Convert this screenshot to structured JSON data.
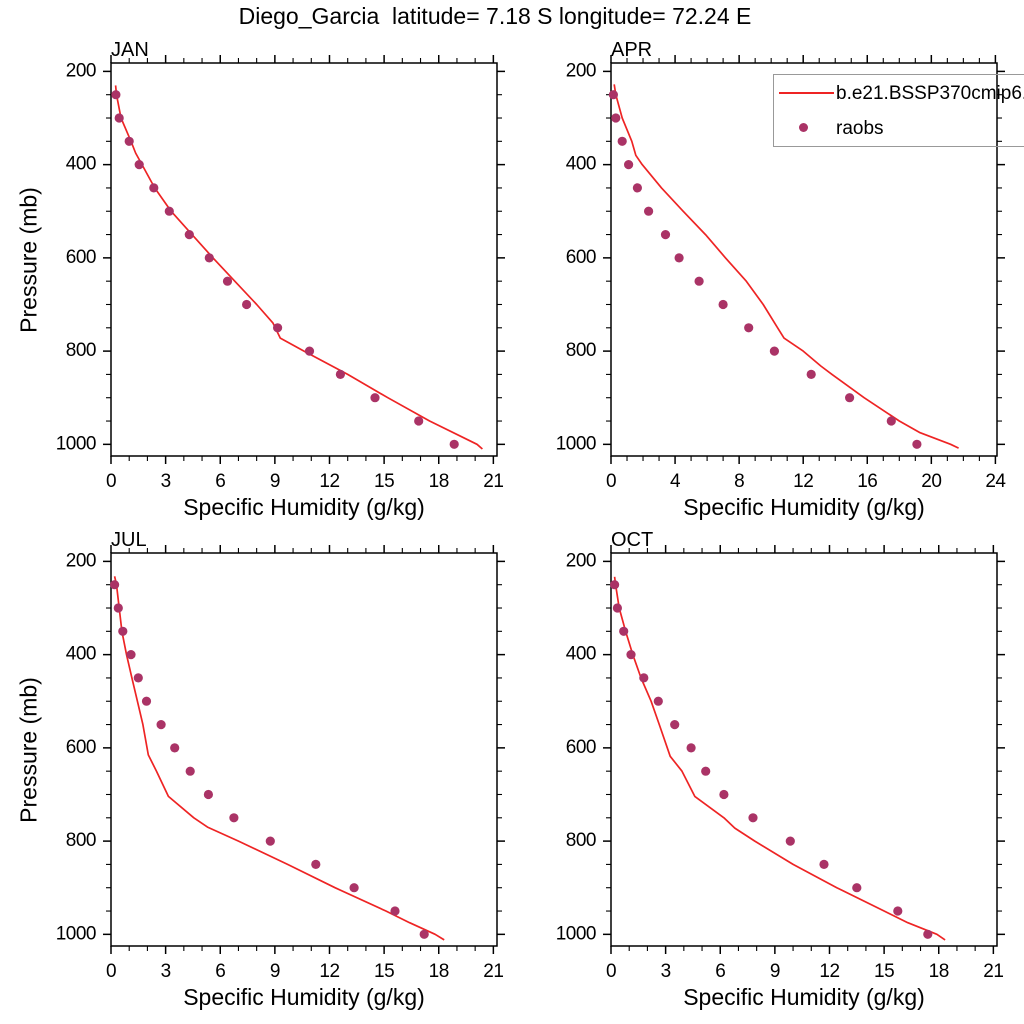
{
  "figure": {
    "title": "Diego_Garcia  latitude= 7.18 S longitude= 72.24 E"
  },
  "legend": {
    "items": [
      {
        "label": "b.e21.BSSP370cmip6.",
        "type": "line",
        "color": "#ee2424"
      },
      {
        "label": "raobs",
        "type": "marker",
        "color": "#aa3366"
      }
    ]
  },
  "chart_data": [
    {
      "type": "line",
      "title": "JAN",
      "xlabel": "Specific Humidity (g/kg)",
      "ylabel": "Pressure (mb)",
      "xlim": [
        0,
        21.2
      ],
      "xticks": [
        0,
        3,
        6,
        9,
        12,
        15,
        18,
        21
      ],
      "x_minor_step": 1,
      "ylim": [
        182,
        1025
      ],
      "yticks": [
        200,
        400,
        600,
        800,
        1000
      ],
      "y_minor_step": 50,
      "y_axis_inverted": true,
      "grid": false,
      "series": [
        {
          "name": "b.e21.BSSP370cmip6.",
          "kind": "line",
          "color": "#ee2424",
          "points": [
            [
              0.25,
              230
            ],
            [
              0.3,
              250
            ],
            [
              0.55,
              300
            ],
            [
              1.1,
              350
            ],
            [
              1.35,
              375
            ],
            [
              1.7,
              400
            ],
            [
              2.4,
              450
            ],
            [
              3.3,
              500
            ],
            [
              4.45,
              550
            ],
            [
              5.6,
              600
            ],
            [
              6.8,
              650
            ],
            [
              8.0,
              700
            ],
            [
              8.9,
              740
            ],
            [
              9.3,
              772
            ],
            [
              10.6,
              800
            ],
            [
              13.0,
              850
            ],
            [
              15.2,
              900
            ],
            [
              17.5,
              950
            ],
            [
              20.1,
              1000
            ],
            [
              20.4,
              1010
            ]
          ]
        },
        {
          "name": "raobs",
          "kind": "scatter",
          "color": "#aa3366",
          "points": [
            [
              0.27,
              250
            ],
            [
              0.45,
              300
            ],
            [
              1.0,
              350
            ],
            [
              1.55,
              400
            ],
            [
              2.35,
              450
            ],
            [
              3.2,
              500
            ],
            [
              4.3,
              550
            ],
            [
              5.4,
              600
            ],
            [
              6.4,
              650
            ],
            [
              7.45,
              700
            ],
            [
              9.15,
              750
            ],
            [
              10.9,
              800
            ],
            [
              12.6,
              850
            ],
            [
              14.5,
              900
            ],
            [
              16.9,
              950
            ],
            [
              18.85,
              1000
            ]
          ]
        }
      ]
    },
    {
      "type": "line",
      "title": "APR",
      "xlabel": "Specific Humidity (g/kg)",
      "ylabel": "Pressure (mb)",
      "xlim": [
        0,
        24.1
      ],
      "xticks": [
        0,
        4,
        8,
        12,
        16,
        20,
        24
      ],
      "x_minor_step": 1,
      "ylim": [
        182,
        1025
      ],
      "yticks": [
        200,
        400,
        600,
        800,
        1000
      ],
      "y_minor_step": 50,
      "y_axis_inverted": true,
      "grid": false,
      "series": [
        {
          "name": "b.e21.BSSP370cmip6.",
          "kind": "line",
          "color": "#ee2424",
          "points": [
            [
              0.2,
              228
            ],
            [
              0.3,
              250
            ],
            [
              0.7,
              300
            ],
            [
              1.3,
              350
            ],
            [
              1.55,
              380
            ],
            [
              1.95,
              400
            ],
            [
              3.15,
              450
            ],
            [
              4.5,
              500
            ],
            [
              5.9,
              550
            ],
            [
              7.15,
              600
            ],
            [
              8.45,
              650
            ],
            [
              9.5,
              700
            ],
            [
              10.4,
              750
            ],
            [
              10.8,
              772
            ],
            [
              12.0,
              800
            ],
            [
              13.1,
              832
            ],
            [
              13.8,
              850
            ],
            [
              15.8,
              900
            ],
            [
              18.0,
              950
            ],
            [
              19.3,
              975
            ],
            [
              21.2,
              1000
            ],
            [
              21.7,
              1008
            ]
          ]
        },
        {
          "name": "raobs",
          "kind": "scatter",
          "color": "#aa3366",
          "points": [
            [
              0.15,
              250
            ],
            [
              0.3,
              300
            ],
            [
              0.7,
              350
            ],
            [
              1.1,
              400
            ],
            [
              1.65,
              450
            ],
            [
              2.35,
              500
            ],
            [
              3.4,
              550
            ],
            [
              4.25,
              600
            ],
            [
              5.5,
              650
            ],
            [
              7.0,
              700
            ],
            [
              8.6,
              750
            ],
            [
              10.2,
              800
            ],
            [
              12.5,
              850
            ],
            [
              14.9,
              900
            ],
            [
              17.5,
              950
            ],
            [
              19.1,
              1000
            ]
          ]
        }
      ]
    },
    {
      "type": "line",
      "title": "JUL",
      "xlabel": "Specific Humidity (g/kg)",
      "ylabel": "Pressure (mb)",
      "xlim": [
        0,
        21.2
      ],
      "xticks": [
        0,
        3,
        6,
        9,
        12,
        15,
        18,
        21
      ],
      "x_minor_step": 1,
      "ylim": [
        182,
        1025
      ],
      "yticks": [
        200,
        400,
        600,
        800,
        1000
      ],
      "y_minor_step": 50,
      "y_axis_inverted": true,
      "grid": false,
      "series": [
        {
          "name": "b.e21.BSSP370cmip6.",
          "kind": "line",
          "color": "#ee2424",
          "points": [
            [
              0.2,
              232
            ],
            [
              0.3,
              250
            ],
            [
              0.45,
              300
            ],
            [
              0.6,
              350
            ],
            [
              0.85,
              400
            ],
            [
              1.15,
              450
            ],
            [
              1.45,
              500
            ],
            [
              1.75,
              550
            ],
            [
              2.05,
              615
            ],
            [
              2.5,
              650
            ],
            [
              3.15,
              704
            ],
            [
              4.55,
              750
            ],
            [
              5.3,
              770
            ],
            [
              7.0,
              800
            ],
            [
              9.7,
              850
            ],
            [
              12.3,
              900
            ],
            [
              15.1,
              950
            ],
            [
              16.4,
              975
            ],
            [
              17.8,
              1000
            ],
            [
              18.3,
              1012
            ]
          ]
        },
        {
          "name": "raobs",
          "kind": "scatter",
          "color": "#aa3366",
          "points": [
            [
              0.2,
              250
            ],
            [
              0.4,
              300
            ],
            [
              0.65,
              350
            ],
            [
              1.1,
              400
            ],
            [
              1.5,
              450
            ],
            [
              1.95,
              500
            ],
            [
              2.75,
              550
            ],
            [
              3.5,
              600
            ],
            [
              4.35,
              650
            ],
            [
              5.35,
              700
            ],
            [
              6.75,
              750
            ],
            [
              8.75,
              800
            ],
            [
              11.25,
              850
            ],
            [
              13.35,
              900
            ],
            [
              15.6,
              950
            ],
            [
              17.2,
              1000
            ]
          ]
        }
      ]
    },
    {
      "type": "line",
      "title": "OCT",
      "xlabel": "Specific Humidity (g/kg)",
      "ylabel": "Pressure (mb)",
      "xlim": [
        0,
        21.2
      ],
      "xticks": [
        0,
        3,
        6,
        9,
        12,
        15,
        18,
        21
      ],
      "x_minor_step": 1,
      "ylim": [
        182,
        1025
      ],
      "yticks": [
        200,
        400,
        600,
        800,
        1000
      ],
      "y_minor_step": 50,
      "y_axis_inverted": true,
      "grid": false,
      "series": [
        {
          "name": "b.e21.BSSP370cmip6.",
          "kind": "line",
          "color": "#ee2424",
          "points": [
            [
              0.2,
              233
            ],
            [
              0.25,
              250
            ],
            [
              0.45,
              300
            ],
            [
              0.8,
              350
            ],
            [
              1.2,
              400
            ],
            [
              1.65,
              450
            ],
            [
              2.2,
              500
            ],
            [
              2.65,
              550
            ],
            [
              3.25,
              618
            ],
            [
              3.9,
              650
            ],
            [
              4.6,
              704
            ],
            [
              6.2,
              750
            ],
            [
              6.8,
              772
            ],
            [
              7.9,
              800
            ],
            [
              10.0,
              850
            ],
            [
              12.4,
              900
            ],
            [
              15.0,
              950
            ],
            [
              16.3,
              975
            ],
            [
              17.9,
              1000
            ],
            [
              18.35,
              1012
            ]
          ]
        },
        {
          "name": "raobs",
          "kind": "scatter",
          "color": "#aa3366",
          "points": [
            [
              0.2,
              250
            ],
            [
              0.35,
              300
            ],
            [
              0.7,
              350
            ],
            [
              1.1,
              400
            ],
            [
              1.8,
              450
            ],
            [
              2.6,
              500
            ],
            [
              3.5,
              550
            ],
            [
              4.4,
              600
            ],
            [
              5.2,
              650
            ],
            [
              6.2,
              700
            ],
            [
              7.8,
              750
            ],
            [
              9.85,
              800
            ],
            [
              11.7,
              850
            ],
            [
              13.5,
              900
            ],
            [
              15.75,
              950
            ],
            [
              17.4,
              1000
            ]
          ]
        }
      ]
    }
  ]
}
